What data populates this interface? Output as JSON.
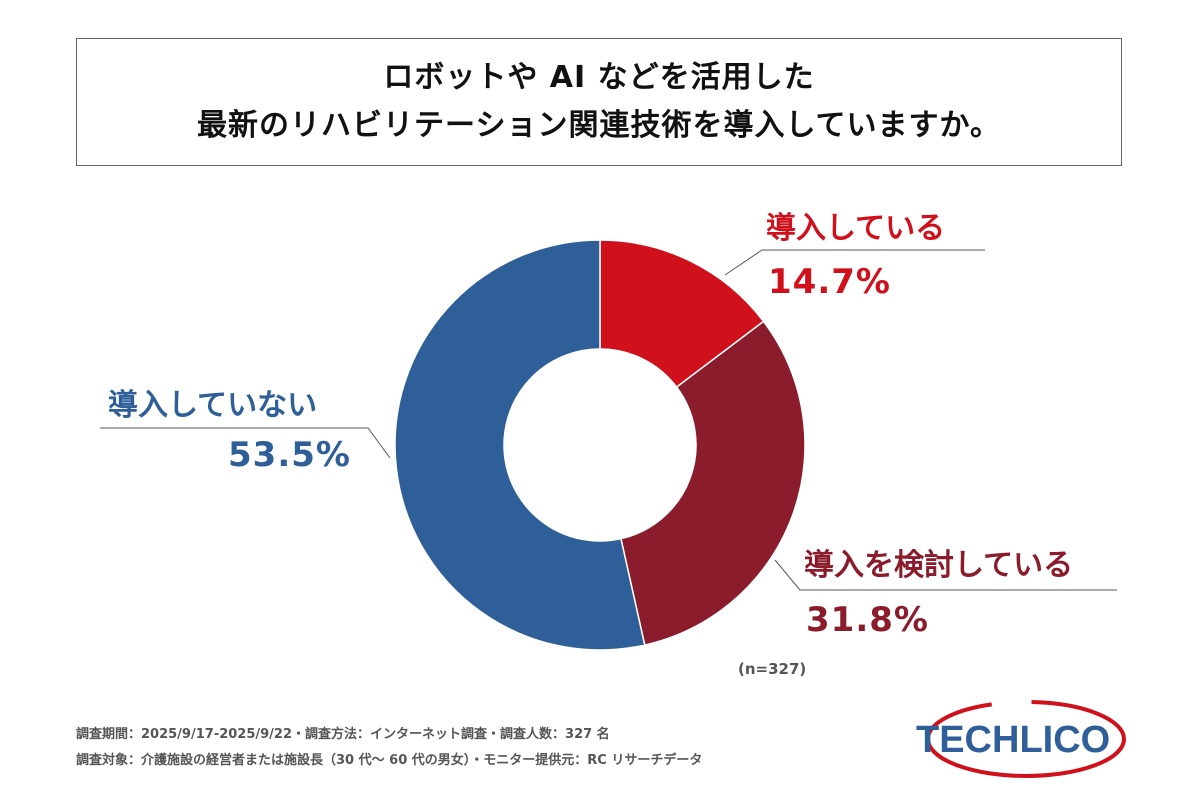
{
  "title": {
    "line1": "ロボットや AI などを活用した",
    "line2": "最新のリハビリテーション関連技術を導入していますか。"
  },
  "chart_data": {
    "type": "pie",
    "donut": true,
    "title": "ロボットや AI などを活用した 最新のリハビリテーション関連技術を導入していますか。",
    "slices": [
      {
        "label": "導入している",
        "value": 14.7,
        "display": "14.7%",
        "color": "#d0111c"
      },
      {
        "label": "導入を検討している",
        "value": 31.8,
        "display": "31.8%",
        "color": "#8b1c2b"
      },
      {
        "label": "導入していない",
        "value": 53.5,
        "display": "53.5%",
        "color": "#2f5f98"
      }
    ],
    "n_label": "(n=327)"
  },
  "footer": {
    "line1": "調査期間：2025/9/17-2025/9/22・調査方法：インターネット調査・調査人数：327 名",
    "line2": "調査対象：介護施設の経営者または施設長（30 代～ 60 代の男女）・モニター提供元：RC リサーチデータ"
  },
  "logo": {
    "text": "TECHLICO",
    "text_color": "#2f5f98",
    "ring_color": "#d0111c"
  }
}
